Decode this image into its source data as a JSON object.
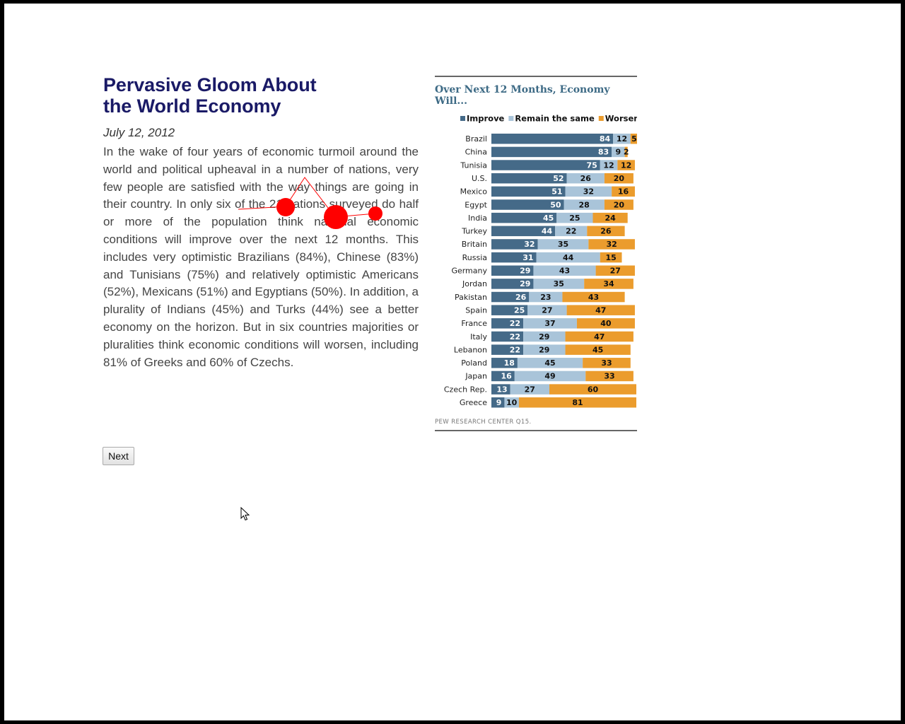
{
  "article": {
    "title_line1": "Pervasive Gloom About",
    "title_line2": "the World Economy",
    "date": "July 12, 2012",
    "body": "In the wake of four years of economic turmoil around the world and political upheaval in a number of nations, very few people are satisfied with the way things are going in their country. In only six of the 21 nations surveyed do half or more of the population think national economic conditions will improve over the next 12 months. This includes very optimistic Brazilians (84%), Chinese (83%) and Tunisians (75%) and relatively optimistic Americans (52%), Mexicans (51%) and Egyptians (50%). In addition, a plurality of Indians (45%) and Turks (44%) see a better economy on the horizon. But in six countries majorities or pluralities think economic conditions will worsen, including 81% of Greeks and 60% of Czechs."
  },
  "next_button": {
    "label": "Next"
  },
  "chart_data": {
    "type": "bar",
    "stacked": true,
    "orientation": "horizontal",
    "title": "Over Next 12 Months, Economy Will...",
    "source": "PEW RESEARCH CENTER Q15.",
    "legend_position": "top",
    "categories": [
      "Brazil",
      "China",
      "Tunisia",
      "U.S.",
      "Mexico",
      "Egypt",
      "India",
      "Turkey",
      "Britain",
      "Russia",
      "Germany",
      "Jordan",
      "Pakistan",
      "Spain",
      "France",
      "Italy",
      "Lebanon",
      "Poland",
      "Japan",
      "Czech Rep.",
      "Greece"
    ],
    "series": [
      {
        "name": "Improve",
        "color": "#456a88",
        "values": [
          84,
          83,
          75,
          52,
          51,
          50,
          45,
          44,
          32,
          31,
          29,
          29,
          26,
          25,
          22,
          22,
          22,
          18,
          16,
          13,
          9
        ]
      },
      {
        "name": "Remain the same",
        "color": "#a9c4d9",
        "values": [
          12,
          9,
          12,
          26,
          32,
          28,
          25,
          22,
          35,
          44,
          43,
          35,
          23,
          27,
          37,
          29,
          29,
          45,
          49,
          27,
          10
        ]
      },
      {
        "name": "Worsen",
        "color": "#eb9c2d",
        "values": [
          5,
          2,
          12,
          20,
          16,
          20,
          24,
          26,
          32,
          15,
          27,
          34,
          43,
          47,
          40,
          47,
          45,
          33,
          33,
          60,
          81
        ]
      }
    ]
  }
}
